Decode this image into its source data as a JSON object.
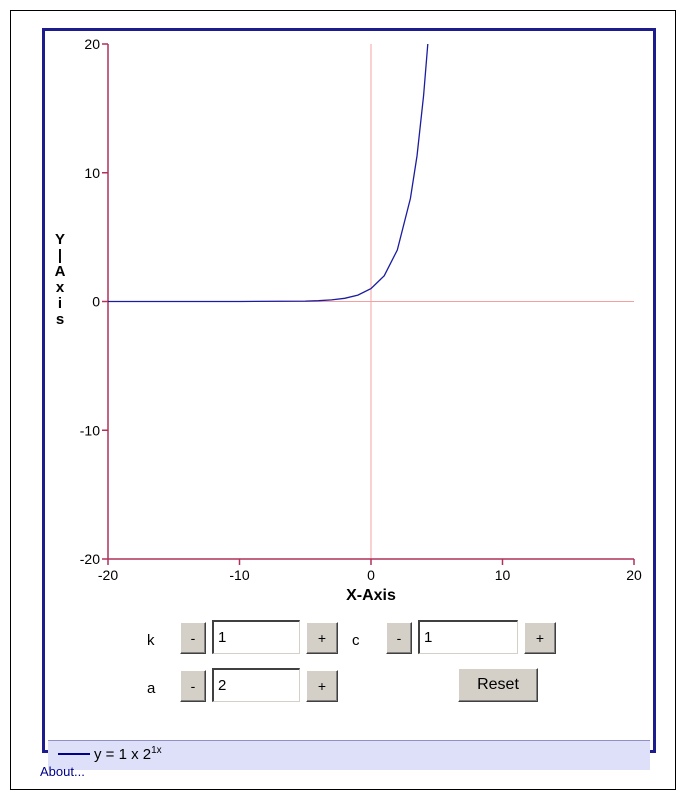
{
  "chart_data": {
    "type": "line",
    "title": "",
    "xlabel": "X-Axis",
    "ylabel": "Y-Axis",
    "xlim": [
      -20,
      20
    ],
    "ylim": [
      -20,
      20
    ],
    "xticks": [
      "-20",
      "-10",
      "0",
      "10",
      "20"
    ],
    "yticks": [
      "20",
      "10",
      "0",
      "-10",
      "-20"
    ],
    "axis_color": "#b0305a",
    "origin_axes_color": "#f4a0a0",
    "series": [
      {
        "color": "#1c1ca0",
        "function": "y = k * a^(c*x)",
        "x": [
          -20,
          -10,
          -5,
          -4,
          -3,
          -2,
          -1,
          0,
          1,
          2,
          3,
          3.5,
          4,
          4.32
        ],
        "y": [
          1e-06,
          0.001,
          0.031,
          0.063,
          0.125,
          0.25,
          0.5,
          1,
          2,
          4,
          8,
          11.3,
          16,
          20
        ]
      }
    ]
  },
  "controls": {
    "k_label": "k",
    "k_value": "1",
    "c_label": "c",
    "c_value": "1",
    "a_label": "a",
    "a_value": "2",
    "minus": "-",
    "plus": "+",
    "reset_label": "Reset"
  },
  "legend": {
    "eq_main": "y = 1 x 2",
    "eq_sup": "1x"
  },
  "about_link": "About..."
}
